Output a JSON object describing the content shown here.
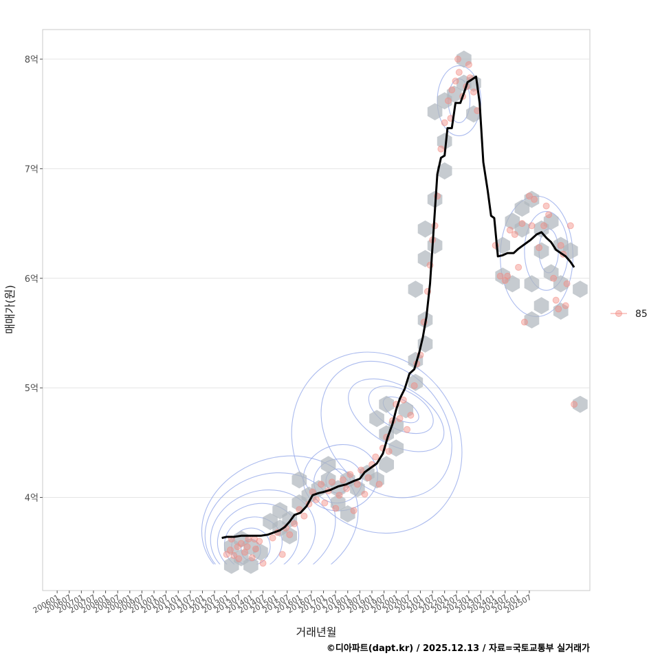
{
  "chart_data": {
    "type": "scatter",
    "title": "",
    "xlabel": "거래년월",
    "ylabel": "매매가(원)",
    "ylim": [
      3.15,
      8.27
    ],
    "xlim": [
      2005.4,
      2028.0
    ],
    "y_ticks": [
      {
        "value": 4,
        "label": "4억"
      },
      {
        "value": 5,
        "label": "5억"
      },
      {
        "value": 6,
        "label": "6억"
      },
      {
        "value": 7,
        "label": "7억"
      },
      {
        "value": 8,
        "label": "8억"
      }
    ],
    "x_ticks": [
      {
        "value": 2006.0,
        "label": "200601"
      },
      {
        "value": 2006.5,
        "label": "200607"
      },
      {
        "value": 2007.0,
        "label": "200701"
      },
      {
        "value": 2007.5,
        "label": "200707"
      },
      {
        "value": 2008.0,
        "label": "200801"
      },
      {
        "value": 2008.5,
        "label": "200807"
      },
      {
        "value": 2009.0,
        "label": "200901"
      },
      {
        "value": 2009.5,
        "label": "200907"
      },
      {
        "value": 2010.0,
        "label": "201001"
      },
      {
        "value": 2010.5,
        "label": "201007"
      },
      {
        "value": 2011.0,
        "label": "201101"
      },
      {
        "value": 2011.5,
        "label": "201107"
      },
      {
        "value": 2012.0,
        "label": "201201"
      },
      {
        "value": 2012.5,
        "label": "201207"
      },
      {
        "value": 2013.0,
        "label": "201301"
      },
      {
        "value": 2013.5,
        "label": "201307"
      },
      {
        "value": 2014.0,
        "label": "201401"
      },
      {
        "value": 2014.5,
        "label": "201407"
      },
      {
        "value": 2015.0,
        "label": "201501"
      },
      {
        "value": 2015.5,
        "label": "201507"
      },
      {
        "value": 2016.0,
        "label": "201601"
      },
      {
        "value": 2016.5,
        "label": "201607"
      },
      {
        "value": 2017.0,
        "label": "201701"
      },
      {
        "value": 2017.5,
        "label": "201707"
      },
      {
        "value": 2018.0,
        "label": "201801"
      },
      {
        "value": 2018.5,
        "label": "201807"
      },
      {
        "value": 2019.0,
        "label": "201901"
      },
      {
        "value": 2019.5,
        "label": "201907"
      },
      {
        "value": 2020.0,
        "label": "202001"
      },
      {
        "value": 2020.5,
        "label": "202007"
      },
      {
        "value": 2021.0,
        "label": "202101"
      },
      {
        "value": 2021.5,
        "label": "202107"
      },
      {
        "value": 2022.0,
        "label": "202201"
      },
      {
        "value": 2022.5,
        "label": "202207"
      },
      {
        "value": 2023.0,
        "label": "202301"
      },
      {
        "value": 2023.5,
        "label": "202307"
      },
      {
        "value": 2024.0,
        "label": "202401"
      },
      {
        "value": 2024.5,
        "label": "202407"
      },
      {
        "value": 2025.0,
        "label": "202501"
      },
      {
        "value": 2025.5,
        "label": "202507"
      }
    ],
    "legend": {
      "position": "right",
      "entries": [
        {
          "label": "85",
          "color": "#f28b82"
        }
      ]
    },
    "grid": true,
    "colors": {
      "points": "#f28b82",
      "trend": "#000000",
      "hex": "#b0b7be",
      "contour": "#8ea3e8",
      "grid": "#e4e4e4",
      "frame": "#c8c8c8"
    },
    "trend_line": {
      "name": "moving average",
      "points": [
        [
          2012.8,
          3.63
        ],
        [
          2013.0,
          3.64
        ],
        [
          2013.3,
          3.64
        ],
        [
          2013.6,
          3.65
        ],
        [
          2014.0,
          3.65
        ],
        [
          2014.4,
          3.65
        ],
        [
          2014.7,
          3.66
        ],
        [
          2014.95,
          3.68
        ],
        [
          2015.2,
          3.7
        ],
        [
          2015.4,
          3.73
        ],
        [
          2015.6,
          3.78
        ],
        [
          2015.8,
          3.84
        ],
        [
          2016.05,
          3.86
        ],
        [
          2016.3,
          3.92
        ],
        [
          2016.55,
          4.02
        ],
        [
          2016.8,
          4.04
        ],
        [
          2017.0,
          4.05
        ],
        [
          2017.3,
          4.07
        ],
        [
          2017.6,
          4.1
        ],
        [
          2017.95,
          4.12
        ],
        [
          2018.25,
          4.15
        ],
        [
          2018.5,
          4.17
        ],
        [
          2018.7,
          4.23
        ],
        [
          2018.95,
          4.27
        ],
        [
          2019.2,
          4.31
        ],
        [
          2019.45,
          4.4
        ],
        [
          2019.65,
          4.55
        ],
        [
          2019.85,
          4.67
        ],
        [
          2020.0,
          4.8
        ],
        [
          2020.15,
          4.9
        ],
        [
          2020.35,
          4.99
        ],
        [
          2020.55,
          5.13
        ],
        [
          2020.75,
          5.17
        ],
        [
          2020.95,
          5.32
        ],
        [
          2021.1,
          5.46
        ],
        [
          2021.25,
          5.65
        ],
        [
          2021.4,
          5.95
        ],
        [
          2021.55,
          6.45
        ],
        [
          2021.7,
          6.95
        ],
        [
          2021.85,
          7.1
        ],
        [
          2022.0,
          7.12
        ],
        [
          2022.12,
          7.37
        ],
        [
          2022.3,
          7.37
        ],
        [
          2022.45,
          7.6
        ],
        [
          2022.65,
          7.6
        ],
        [
          2022.8,
          7.69
        ],
        [
          2022.95,
          7.79
        ],
        [
          2023.1,
          7.81
        ],
        [
          2023.3,
          7.84
        ],
        [
          2023.45,
          7.6
        ],
        [
          2023.6,
          7.06
        ],
        [
          2023.78,
          6.8
        ],
        [
          2023.92,
          6.57
        ],
        [
          2024.05,
          6.55
        ],
        [
          2024.2,
          6.2
        ],
        [
          2024.4,
          6.21
        ],
        [
          2024.6,
          6.23
        ],
        [
          2024.85,
          6.23
        ],
        [
          2025.05,
          6.27
        ],
        [
          2025.3,
          6.31
        ],
        [
          2025.55,
          6.35
        ],
        [
          2025.8,
          6.4
        ],
        [
          2026.0,
          6.42
        ],
        [
          2026.2,
          6.37
        ],
        [
          2026.4,
          6.33
        ],
        [
          2026.6,
          6.26
        ],
        [
          2026.8,
          6.23
        ],
        [
          2027.0,
          6.2
        ],
        [
          2027.2,
          6.15
        ],
        [
          2027.35,
          6.1
        ]
      ]
    },
    "scatter_points": [
      [
        2013.0,
        3.48
      ],
      [
        2013.15,
        3.52
      ],
      [
        2013.3,
        3.47
      ],
      [
        2013.45,
        3.55
      ],
      [
        2013.6,
        3.58
      ],
      [
        2013.75,
        3.5
      ],
      [
        2013.9,
        3.62
      ],
      [
        2014.05,
        3.45
      ],
      [
        2014.2,
        3.53
      ],
      [
        2014.35,
        3.6
      ],
      [
        2013.2,
        3.62
      ],
      [
        2013.5,
        3.44
      ],
      [
        2013.85,
        3.55
      ],
      [
        2014.15,
        3.62
      ],
      [
        2014.5,
        3.4
      ],
      [
        2014.9,
        3.63
      ],
      [
        2015.1,
        3.68
      ],
      [
        2015.3,
        3.48
      ],
      [
        2015.45,
        3.72
      ],
      [
        2015.6,
        3.66
      ],
      [
        2015.8,
        3.76
      ],
      [
        2016.0,
        3.89
      ],
      [
        2016.2,
        3.83
      ],
      [
        2016.4,
        3.94
      ],
      [
        2016.55,
        4.05
      ],
      [
        2016.7,
        3.98
      ],
      [
        2016.9,
        4.12
      ],
      [
        2017.05,
        3.95
      ],
      [
        2017.2,
        4.06
      ],
      [
        2017.35,
        4.14
      ],
      [
        2017.5,
        3.9
      ],
      [
        2017.65,
        4.02
      ],
      [
        2017.8,
        4.16
      ],
      [
        2017.95,
        4.08
      ],
      [
        2018.1,
        4.21
      ],
      [
        2018.25,
        3.88
      ],
      [
        2018.4,
        4.12
      ],
      [
        2018.55,
        4.25
      ],
      [
        2018.7,
        4.03
      ],
      [
        2018.85,
        4.18
      ],
      [
        2019.0,
        4.3
      ],
      [
        2019.15,
        4.37
      ],
      [
        2019.3,
        4.12
      ],
      [
        2019.45,
        4.45
      ],
      [
        2019.6,
        4.55
      ],
      [
        2019.7,
        4.42
      ],
      [
        2019.85,
        4.7
      ],
      [
        2020.0,
        4.85
      ],
      [
        2020.15,
        4.72
      ],
      [
        2020.3,
        4.89
      ],
      [
        2020.45,
        4.62
      ],
      [
        2020.6,
        4.75
      ],
      [
        2020.75,
        5.02
      ],
      [
        2020.85,
        5.22
      ],
      [
        2021.0,
        5.3
      ],
      [
        2021.15,
        5.6
      ],
      [
        2021.3,
        5.88
      ],
      [
        2021.4,
        6.12
      ],
      [
        2021.5,
        6.35
      ],
      [
        2021.6,
        6.48
      ],
      [
        2021.7,
        6.75
      ],
      [
        2021.85,
        7.18
      ],
      [
        2022.0,
        7.42
      ],
      [
        2022.15,
        7.62
      ],
      [
        2022.3,
        7.72
      ],
      [
        2022.45,
        7.8
      ],
      [
        2022.6,
        7.88
      ],
      [
        2022.75,
        7.66
      ],
      [
        2022.9,
        7.75
      ],
      [
        2023.05,
        7.83
      ],
      [
        2023.2,
        7.7
      ],
      [
        2023.35,
        7.53
      ],
      [
        2022.55,
        8.0
      ],
      [
        2022.25,
        7.46
      ],
      [
        2023.0,
        7.95
      ],
      [
        2024.1,
        6.3
      ],
      [
        2024.3,
        6.02
      ],
      [
        2024.5,
        5.98
      ],
      [
        2024.7,
        6.44
      ],
      [
        2024.9,
        6.4
      ],
      [
        2025.05,
        6.1
      ],
      [
        2025.3,
        5.6
      ],
      [
        2025.5,
        6.75
      ],
      [
        2025.7,
        6.72
      ],
      [
        2025.9,
        6.28
      ],
      [
        2026.1,
        6.48
      ],
      [
        2026.3,
        6.58
      ],
      [
        2026.5,
        6.0
      ],
      [
        2026.7,
        5.72
      ],
      [
        2026.9,
        6.22
      ],
      [
        2027.05,
        5.95
      ],
      [
        2027.2,
        6.48
      ],
      [
        2027.35,
        4.85
      ],
      [
        2026.2,
        6.66
      ],
      [
        2025.6,
        6.48
      ],
      [
        2026.6,
        5.8
      ],
      [
        2027.0,
        5.75
      ],
      [
        2026.8,
        6.3
      ],
      [
        2024.6,
        6.02
      ],
      [
        2025.2,
        6.5
      ]
    ],
    "hexbins": [
      [
        2013.2,
        3.38
      ],
      [
        2013.6,
        3.45
      ],
      [
        2014.0,
        3.38
      ],
      [
        2014.4,
        3.5
      ],
      [
        2013.2,
        3.55
      ],
      [
        2013.6,
        3.62
      ],
      [
        2014.0,
        3.55
      ],
      [
        2014.8,
        3.78
      ],
      [
        2015.2,
        3.72
      ],
      [
        2015.6,
        3.65
      ],
      [
        2015.2,
        3.88
      ],
      [
        2015.6,
        3.8
      ],
      [
        2016.0,
        3.95
      ],
      [
        2016.4,
        4.02
      ],
      [
        2016.0,
        4.16
      ],
      [
        2016.8,
        4.08
      ],
      [
        2017.2,
        4.16
      ],
      [
        2017.6,
        4.08
      ],
      [
        2018.0,
        4.16
      ],
      [
        2018.4,
        4.08
      ],
      [
        2017.2,
        4.3
      ],
      [
        2017.6,
        3.95
      ],
      [
        2018.0,
        3.85
      ],
      [
        2018.8,
        4.22
      ],
      [
        2019.2,
        4.16
      ],
      [
        2019.6,
        4.3
      ],
      [
        2019.2,
        4.72
      ],
      [
        2019.6,
        4.85
      ],
      [
        2019.6,
        4.58
      ],
      [
        2020.0,
        4.65
      ],
      [
        2020.4,
        4.8
      ],
      [
        2020.0,
        4.45
      ],
      [
        2020.8,
        5.05
      ],
      [
        2020.8,
        5.25
      ],
      [
        2021.2,
        5.4
      ],
      [
        2021.2,
        5.62
      ],
      [
        2020.8,
        5.9
      ],
      [
        2021.2,
        6.18
      ],
      [
        2021.6,
        6.3
      ],
      [
        2021.2,
        6.45
      ],
      [
        2021.6,
        6.72
      ],
      [
        2022.0,
        6.98
      ],
      [
        2022.0,
        7.25
      ],
      [
        2021.6,
        7.52
      ],
      [
        2022.0,
        7.62
      ],
      [
        2022.4,
        7.68
      ],
      [
        2022.8,
        7.78
      ],
      [
        2023.2,
        7.78
      ],
      [
        2023.2,
        7.5
      ],
      [
        2022.8,
        8.0
      ],
      [
        2024.4,
        6.3
      ],
      [
        2024.8,
        6.52
      ],
      [
        2025.2,
        6.64
      ],
      [
        2025.6,
        6.72
      ],
      [
        2025.2,
        6.45
      ],
      [
        2024.4,
        6.02
      ],
      [
        2024.8,
        5.95
      ],
      [
        2026.0,
        6.45
      ],
      [
        2026.4,
        6.52
      ],
      [
        2026.8,
        6.3
      ],
      [
        2026.0,
        6.25
      ],
      [
        2025.6,
        5.95
      ],
      [
        2026.4,
        6.05
      ],
      [
        2026.8,
        5.95
      ],
      [
        2027.2,
        6.25
      ],
      [
        2027.6,
        5.9
      ],
      [
        2026.0,
        5.75
      ],
      [
        2025.6,
        5.62
      ],
      [
        2026.8,
        5.7
      ],
      [
        2027.6,
        4.85
      ]
    ],
    "contours": [
      {
        "cx": 2014.0,
        "cy": 3.52,
        "rx": 0.4,
        "ry": 0.1,
        "rot": -12
      },
      {
        "cx": 2014.0,
        "cy": 3.55,
        "rx": 0.8,
        "ry": 0.17,
        "rot": -14
      },
      {
        "cx": 2014.1,
        "cy": 3.58,
        "rx": 1.2,
        "ry": 0.24,
        "rot": -16
      },
      {
        "cx": 2014.3,
        "cy": 3.62,
        "rx": 1.7,
        "ry": 0.32,
        "rot": -18
      },
      {
        "cx": 2014.5,
        "cy": 3.66,
        "rx": 2.2,
        "ry": 0.4,
        "rot": -18
      },
      {
        "cx": 2014.8,
        "cy": 3.72,
        "rx": 2.75,
        "ry": 0.49,
        "rot": -20
      },
      {
        "cx": 2015.2,
        "cy": 3.78,
        "rx": 3.3,
        "ry": 0.58,
        "rot": -20
      },
      {
        "cx": 2017.6,
        "cy": 4.15,
        "rx": 0.5,
        "ry": 0.11,
        "rot": -10
      },
      {
        "cx": 2017.6,
        "cy": 4.15,
        "rx": 1.0,
        "ry": 0.2,
        "rot": -12
      },
      {
        "cx": 2017.7,
        "cy": 4.18,
        "rx": 1.55,
        "ry": 0.3,
        "rot": -14
      },
      {
        "cx": 2020.2,
        "cy": 4.8,
        "rx": 0.4,
        "ry": 0.18,
        "rot": -60
      },
      {
        "cx": 2020.2,
        "cy": 4.8,
        "rx": 0.8,
        "ry": 0.32,
        "rot": -62
      },
      {
        "cx": 2020.0,
        "cy": 4.75,
        "rx": 1.2,
        "ry": 0.48,
        "rot": -60
      },
      {
        "cx": 2019.6,
        "cy": 4.62,
        "rx": 2.4,
        "ry": 0.68,
        "rot": -40
      },
      {
        "cx": 2019.2,
        "cy": 4.5,
        "rx": 3.4,
        "ry": 0.85,
        "rot": -30
      },
      {
        "cx": 2022.6,
        "cy": 7.62,
        "rx": 0.45,
        "ry": 0.2,
        "rot": 0
      },
      {
        "cx": 2022.6,
        "cy": 7.62,
        "rx": 0.9,
        "ry": 0.32,
        "rot": 0
      },
      {
        "cx": 2026.3,
        "cy": 6.25,
        "rx": 0.4,
        "ry": 0.2,
        "rot": 0
      },
      {
        "cx": 2026.2,
        "cy": 6.25,
        "rx": 0.9,
        "ry": 0.36,
        "rot": 0
      },
      {
        "cx": 2025.8,
        "cy": 6.2,
        "rx": 1.5,
        "ry": 0.55,
        "rot": 0
      }
    ]
  },
  "caption": "©디아파트(dapt.kr) / 2025.12.13 / 자료=국토교통부 실거래가"
}
